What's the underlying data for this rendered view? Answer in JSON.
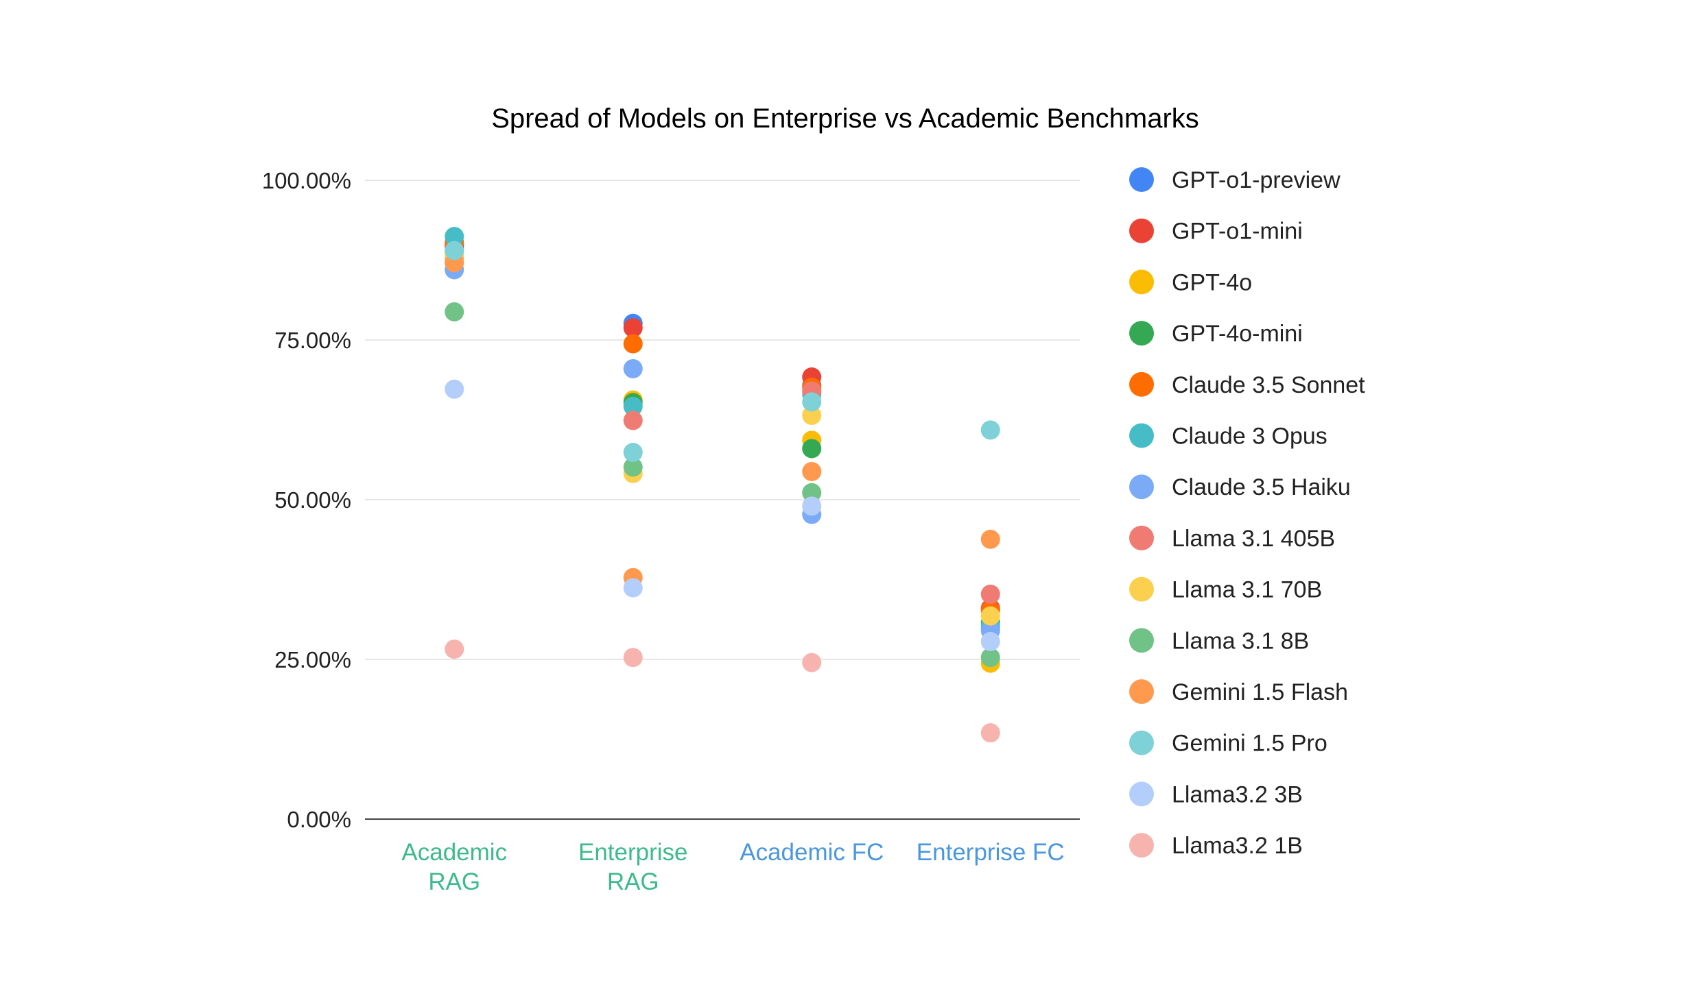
{
  "chart_data": {
    "type": "scatter",
    "title": "Spread of Models on Enterprise vs Academic Benchmarks",
    "xlabel": "",
    "ylabel": "",
    "ylim": [
      0,
      100
    ],
    "yticks": [
      0,
      25,
      50,
      75,
      100
    ],
    "ytick_labels": [
      "0.00%",
      "25.00%",
      "50.00%",
      "75.00%",
      "100.00%"
    ],
    "grid": true,
    "legend_position": "right",
    "categories": [
      {
        "label_lines": [
          "Academic",
          "RAG"
        ],
        "color": "#3dba8c"
      },
      {
        "label_lines": [
          "Enterprise",
          "RAG"
        ],
        "color": "#3dba8c"
      },
      {
        "label_lines": [
          "Academic FC"
        ],
        "color": "#4a97e0"
      },
      {
        "label_lines": [
          "Enterprise FC"
        ],
        "color": "#4a97e0"
      }
    ],
    "series": [
      {
        "name": "GPT-o1-preview",
        "color": "#4285f4",
        "values": [
          89.5,
          77.6,
          67.9,
          29.8
        ]
      },
      {
        "name": "GPT-o1-mini",
        "color": "#ea4335",
        "values": [
          89.8,
          76.9,
          69.2,
          33.0
        ]
      },
      {
        "name": "GPT-4o",
        "color": "#fbbc04",
        "values": [
          88.6,
          65.6,
          59.3,
          24.4
        ]
      },
      {
        "name": "GPT-4o-mini",
        "color": "#34a853",
        "values": [
          88.9,
          65.2,
          58.0,
          30.8
        ]
      },
      {
        "name": "Claude 3.5 Sonnet",
        "color": "#ff6d01",
        "values": [
          90.3,
          74.4,
          67.6,
          32.7
        ]
      },
      {
        "name": "Claude 3 Opus",
        "color": "#46bdc6",
        "values": [
          91.2,
          64.6,
          66.5,
          30.3
        ]
      },
      {
        "name": "Claude 3.5 Haiku",
        "color": "#7baaf7",
        "values": [
          86.0,
          70.5,
          47.7,
          29.5
        ]
      },
      {
        "name": "Llama 3.1 405B",
        "color": "#f07b72",
        "values": [
          88.0,
          62.4,
          67.0,
          35.2
        ]
      },
      {
        "name": "Llama 3.1 70B",
        "color": "#fcd04f",
        "values": [
          88.3,
          54.1,
          63.2,
          31.8
        ]
      },
      {
        "name": "Llama 3.1 8B",
        "color": "#71c287",
        "values": [
          79.4,
          55.1,
          51.1,
          25.3
        ]
      },
      {
        "name": "Gemini 1.5 Flash",
        "color": "#ff994d",
        "values": [
          87.1,
          37.8,
          54.4,
          43.8
        ]
      },
      {
        "name": "Gemini 1.5 Pro",
        "color": "#7ed1d7",
        "values": [
          89.0,
          57.4,
          65.3,
          60.9
        ]
      },
      {
        "name": "Llama3.2 3B",
        "color": "#b3cefb",
        "values": [
          67.3,
          36.2,
          49.0,
          27.8
        ]
      },
      {
        "name": "Llama3.2 1B",
        "color": "#f7b4ae",
        "values": [
          26.6,
          25.3,
          24.5,
          13.5
        ]
      }
    ]
  }
}
